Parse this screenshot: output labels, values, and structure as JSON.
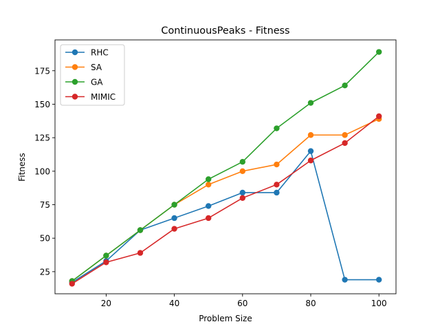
{
  "chart_data": {
    "type": "line",
    "title": "ContinuousPeaks - Fitness",
    "xlabel": "Problem Size",
    "ylabel": "Fitness",
    "x": [
      10,
      20,
      30,
      40,
      50,
      60,
      70,
      80,
      90,
      100
    ],
    "xlim": [
      5,
      105
    ],
    "ylim": [
      8.5,
      198
    ],
    "xticks": [
      20,
      40,
      60,
      80,
      100
    ],
    "yticks": [
      25,
      50,
      75,
      100,
      125,
      150,
      175
    ],
    "grid": false,
    "legend_position": "top-left",
    "series": [
      {
        "name": "RHC",
        "color": "#1f77b4",
        "values": [
          17,
          33,
          56,
          65,
          74,
          84,
          84,
          115,
          19,
          19
        ]
      },
      {
        "name": "SA",
        "color": "#ff7f0e",
        "values": [
          18,
          37,
          56,
          75,
          90,
          100,
          105,
          127,
          127,
          139
        ]
      },
      {
        "name": "GA",
        "color": "#2ca02c",
        "values": [
          18,
          37,
          56,
          75,
          94,
          107,
          132,
          151,
          164,
          189
        ]
      },
      {
        "name": "MIMIC",
        "color": "#d62728",
        "values": [
          16,
          32,
          39,
          57,
          65,
          80,
          90,
          108,
          121,
          141
        ]
      }
    ]
  }
}
